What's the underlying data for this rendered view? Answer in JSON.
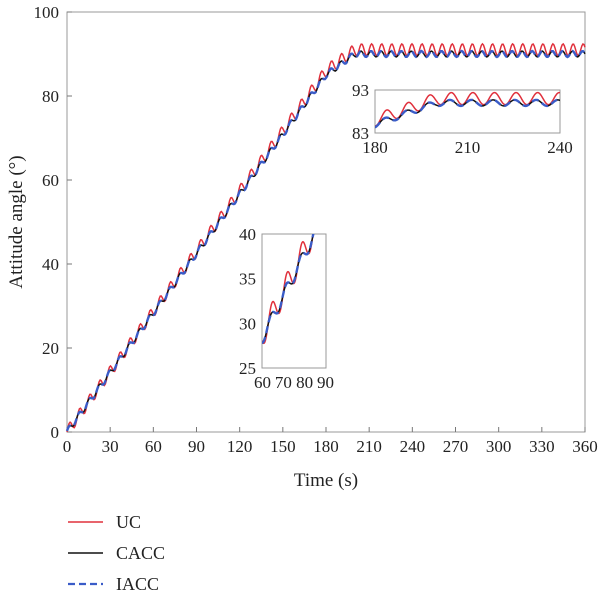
{
  "chart_data": {
    "type": "line",
    "title": "",
    "xlabel": "Time (s)",
    "ylabel": "Attitude angle (°)",
    "xlim": [
      0,
      360
    ],
    "ylim": [
      0,
      100
    ],
    "xticks": [
      0,
      30,
      60,
      90,
      120,
      150,
      180,
      210,
      240,
      270,
      300,
      330,
      360
    ],
    "yticks": [
      0,
      20,
      40,
      60,
      80,
      100
    ],
    "grid": false,
    "legend": "bottom-left, below plot",
    "series": [
      {
        "name": "UC",
        "color": "#e0303c",
        "style": "solid",
        "x": [
          0,
          180,
          200,
          360
        ],
        "y": [
          0,
          86,
          91,
          91
        ]
      },
      {
        "name": "CACC",
        "color": "#111111",
        "style": "solid",
        "x": [
          0,
          180,
          200,
          360
        ],
        "y": [
          0,
          85,
          90,
          90
        ]
      },
      {
        "name": "IACC",
        "color": "#3a5cc8",
        "style": "dashed",
        "x": [
          0,
          180,
          200,
          360
        ],
        "y": [
          0,
          85,
          90,
          90
        ]
      }
    ],
    "insets": [
      {
        "xlim": [
          180,
          240
        ],
        "ylim": [
          83,
          93
        ],
        "xticks": [
          180,
          210,
          240
        ],
        "yticks": [
          83,
          93
        ]
      },
      {
        "xlim": [
          60,
          90
        ],
        "ylim": [
          25,
          40
        ],
        "xticks": [
          60,
          70,
          80,
          90
        ],
        "yticks": [
          25,
          30,
          35,
          40
        ]
      }
    ]
  }
}
